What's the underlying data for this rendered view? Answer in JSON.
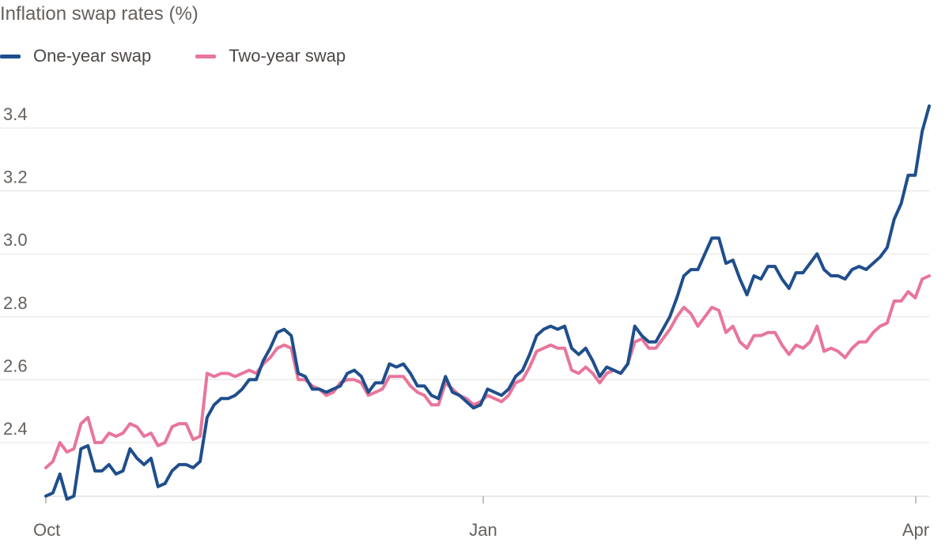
{
  "colors": {
    "one_year": "#1f4e8c",
    "two_year": "#e8769a",
    "grid": "#e6e3df",
    "axis": "#8a8580"
  },
  "chart_data": {
    "type": "line",
    "title": "Inflation swap rates (%)",
    "xlabel": "",
    "ylabel": "",
    "ylim": [
      2.22,
      3.5
    ],
    "yticks": [
      "2.4",
      "2.6",
      "2.8",
      "3.0",
      "3.2",
      "3.4"
    ],
    "xticks": [
      "Oct",
      "Jan",
      "Apr"
    ],
    "legend": [
      "One-year swap",
      "Two-year swap"
    ],
    "series": [
      {
        "name": "One-year swap",
        "values": [
          2.23,
          2.24,
          2.3,
          2.22,
          2.23,
          2.38,
          2.39,
          2.31,
          2.31,
          2.33,
          2.3,
          2.31,
          2.38,
          2.35,
          2.33,
          2.35,
          2.26,
          2.27,
          2.31,
          2.33,
          2.33,
          2.32,
          2.34,
          2.48,
          2.52,
          2.54,
          2.54,
          2.55,
          2.57,
          2.6,
          2.6,
          2.66,
          2.7,
          2.75,
          2.76,
          2.74,
          2.62,
          2.61,
          2.57,
          2.57,
          2.56,
          2.57,
          2.58,
          2.62,
          2.63,
          2.61,
          2.56,
          2.59,
          2.59,
          2.65,
          2.64,
          2.65,
          2.62,
          2.58,
          2.58,
          2.55,
          2.54,
          2.61,
          2.56,
          2.55,
          2.53,
          2.51,
          2.52,
          2.57,
          2.56,
          2.55,
          2.57,
          2.61,
          2.63,
          2.68,
          2.74,
          2.76,
          2.77,
          2.76,
          2.77,
          2.7,
          2.68,
          2.7,
          2.66,
          2.61,
          2.64,
          2.63,
          2.62,
          2.65,
          2.77,
          2.74,
          2.72,
          2.72,
          2.76,
          2.8,
          2.86,
          2.93,
          2.95,
          2.95,
          3.0,
          3.05,
          3.05,
          2.97,
          2.98,
          2.92,
          2.87,
          2.93,
          2.92,
          2.96,
          2.96,
          2.92,
          2.89,
          2.94,
          2.94,
          2.97,
          3.0,
          2.95,
          2.93,
          2.93,
          2.92,
          2.95,
          2.96,
          2.95,
          2.97,
          2.99,
          3.02,
          3.11,
          3.16,
          3.25,
          3.25,
          3.39,
          3.47
        ]
      },
      {
        "name": "Two-year swap",
        "values": [
          2.32,
          2.34,
          2.4,
          2.37,
          2.38,
          2.46,
          2.48,
          2.4,
          2.4,
          2.43,
          2.42,
          2.43,
          2.46,
          2.45,
          2.42,
          2.43,
          2.39,
          2.4,
          2.45,
          2.46,
          2.46,
          2.41,
          2.42,
          2.62,
          2.61,
          2.62,
          2.62,
          2.61,
          2.62,
          2.63,
          2.62,
          2.65,
          2.67,
          2.7,
          2.71,
          2.7,
          2.6,
          2.6,
          2.58,
          2.57,
          2.55,
          2.56,
          2.59,
          2.6,
          2.6,
          2.59,
          2.55,
          2.56,
          2.57,
          2.61,
          2.61,
          2.61,
          2.58,
          2.56,
          2.55,
          2.52,
          2.52,
          2.59,
          2.57,
          2.55,
          2.54,
          2.52,
          2.53,
          2.55,
          2.54,
          2.53,
          2.55,
          2.59,
          2.6,
          2.64,
          2.69,
          2.7,
          2.71,
          2.7,
          2.7,
          2.63,
          2.62,
          2.64,
          2.62,
          2.59,
          2.62,
          2.63,
          2.62,
          2.65,
          2.72,
          2.73,
          2.7,
          2.7,
          2.73,
          2.76,
          2.8,
          2.83,
          2.81,
          2.77,
          2.8,
          2.83,
          2.82,
          2.75,
          2.77,
          2.72,
          2.7,
          2.74,
          2.74,
          2.75,
          2.75,
          2.71,
          2.68,
          2.71,
          2.7,
          2.72,
          2.77,
          2.69,
          2.7,
          2.69,
          2.67,
          2.7,
          2.72,
          2.72,
          2.75,
          2.77,
          2.78,
          2.85,
          2.85,
          2.88,
          2.86,
          2.92,
          2.93
        ]
      }
    ]
  }
}
